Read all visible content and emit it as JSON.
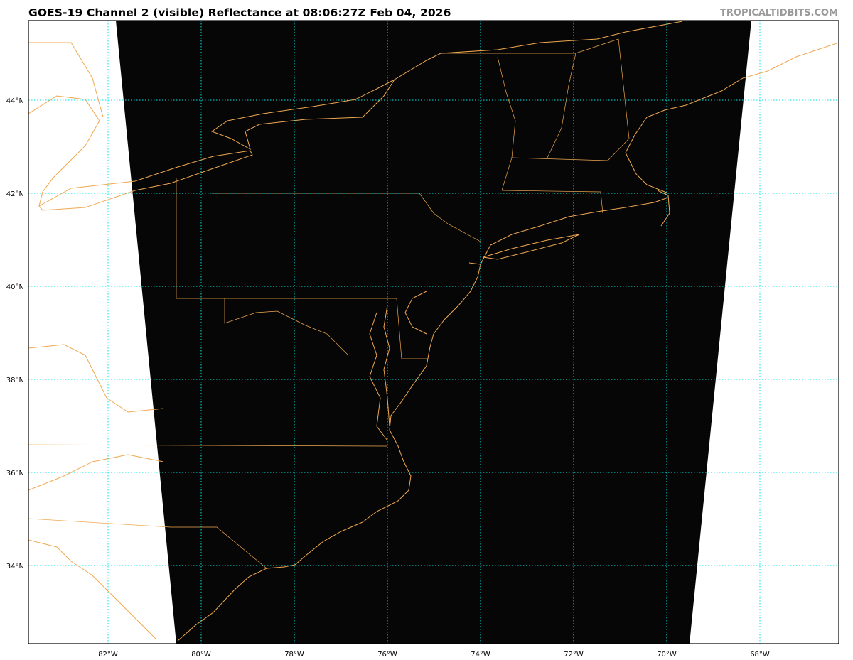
{
  "header": {
    "title": "GOES-19 Channel 2 (visible) Reflectance at 08:06:27Z Feb 04, 2026",
    "brand": "TROPICALTIDBITS.COM"
  },
  "map": {
    "product": "GOES-19 Channel 2 (visible) Reflectance",
    "colors": {
      "coastline": "#f0a850",
      "gridline": "#00e5e5",
      "imagery": "#060606",
      "background": "#ffffff"
    },
    "lon_labels": [
      "82°W",
      "80°W",
      "78°W",
      "76°W",
      "74°W",
      "72°W",
      "70°W",
      "68°W"
    ],
    "lat_labels": [
      "44°N",
      "42°N",
      "40°N",
      "38°N",
      "36°N",
      "34°N"
    ]
  }
}
